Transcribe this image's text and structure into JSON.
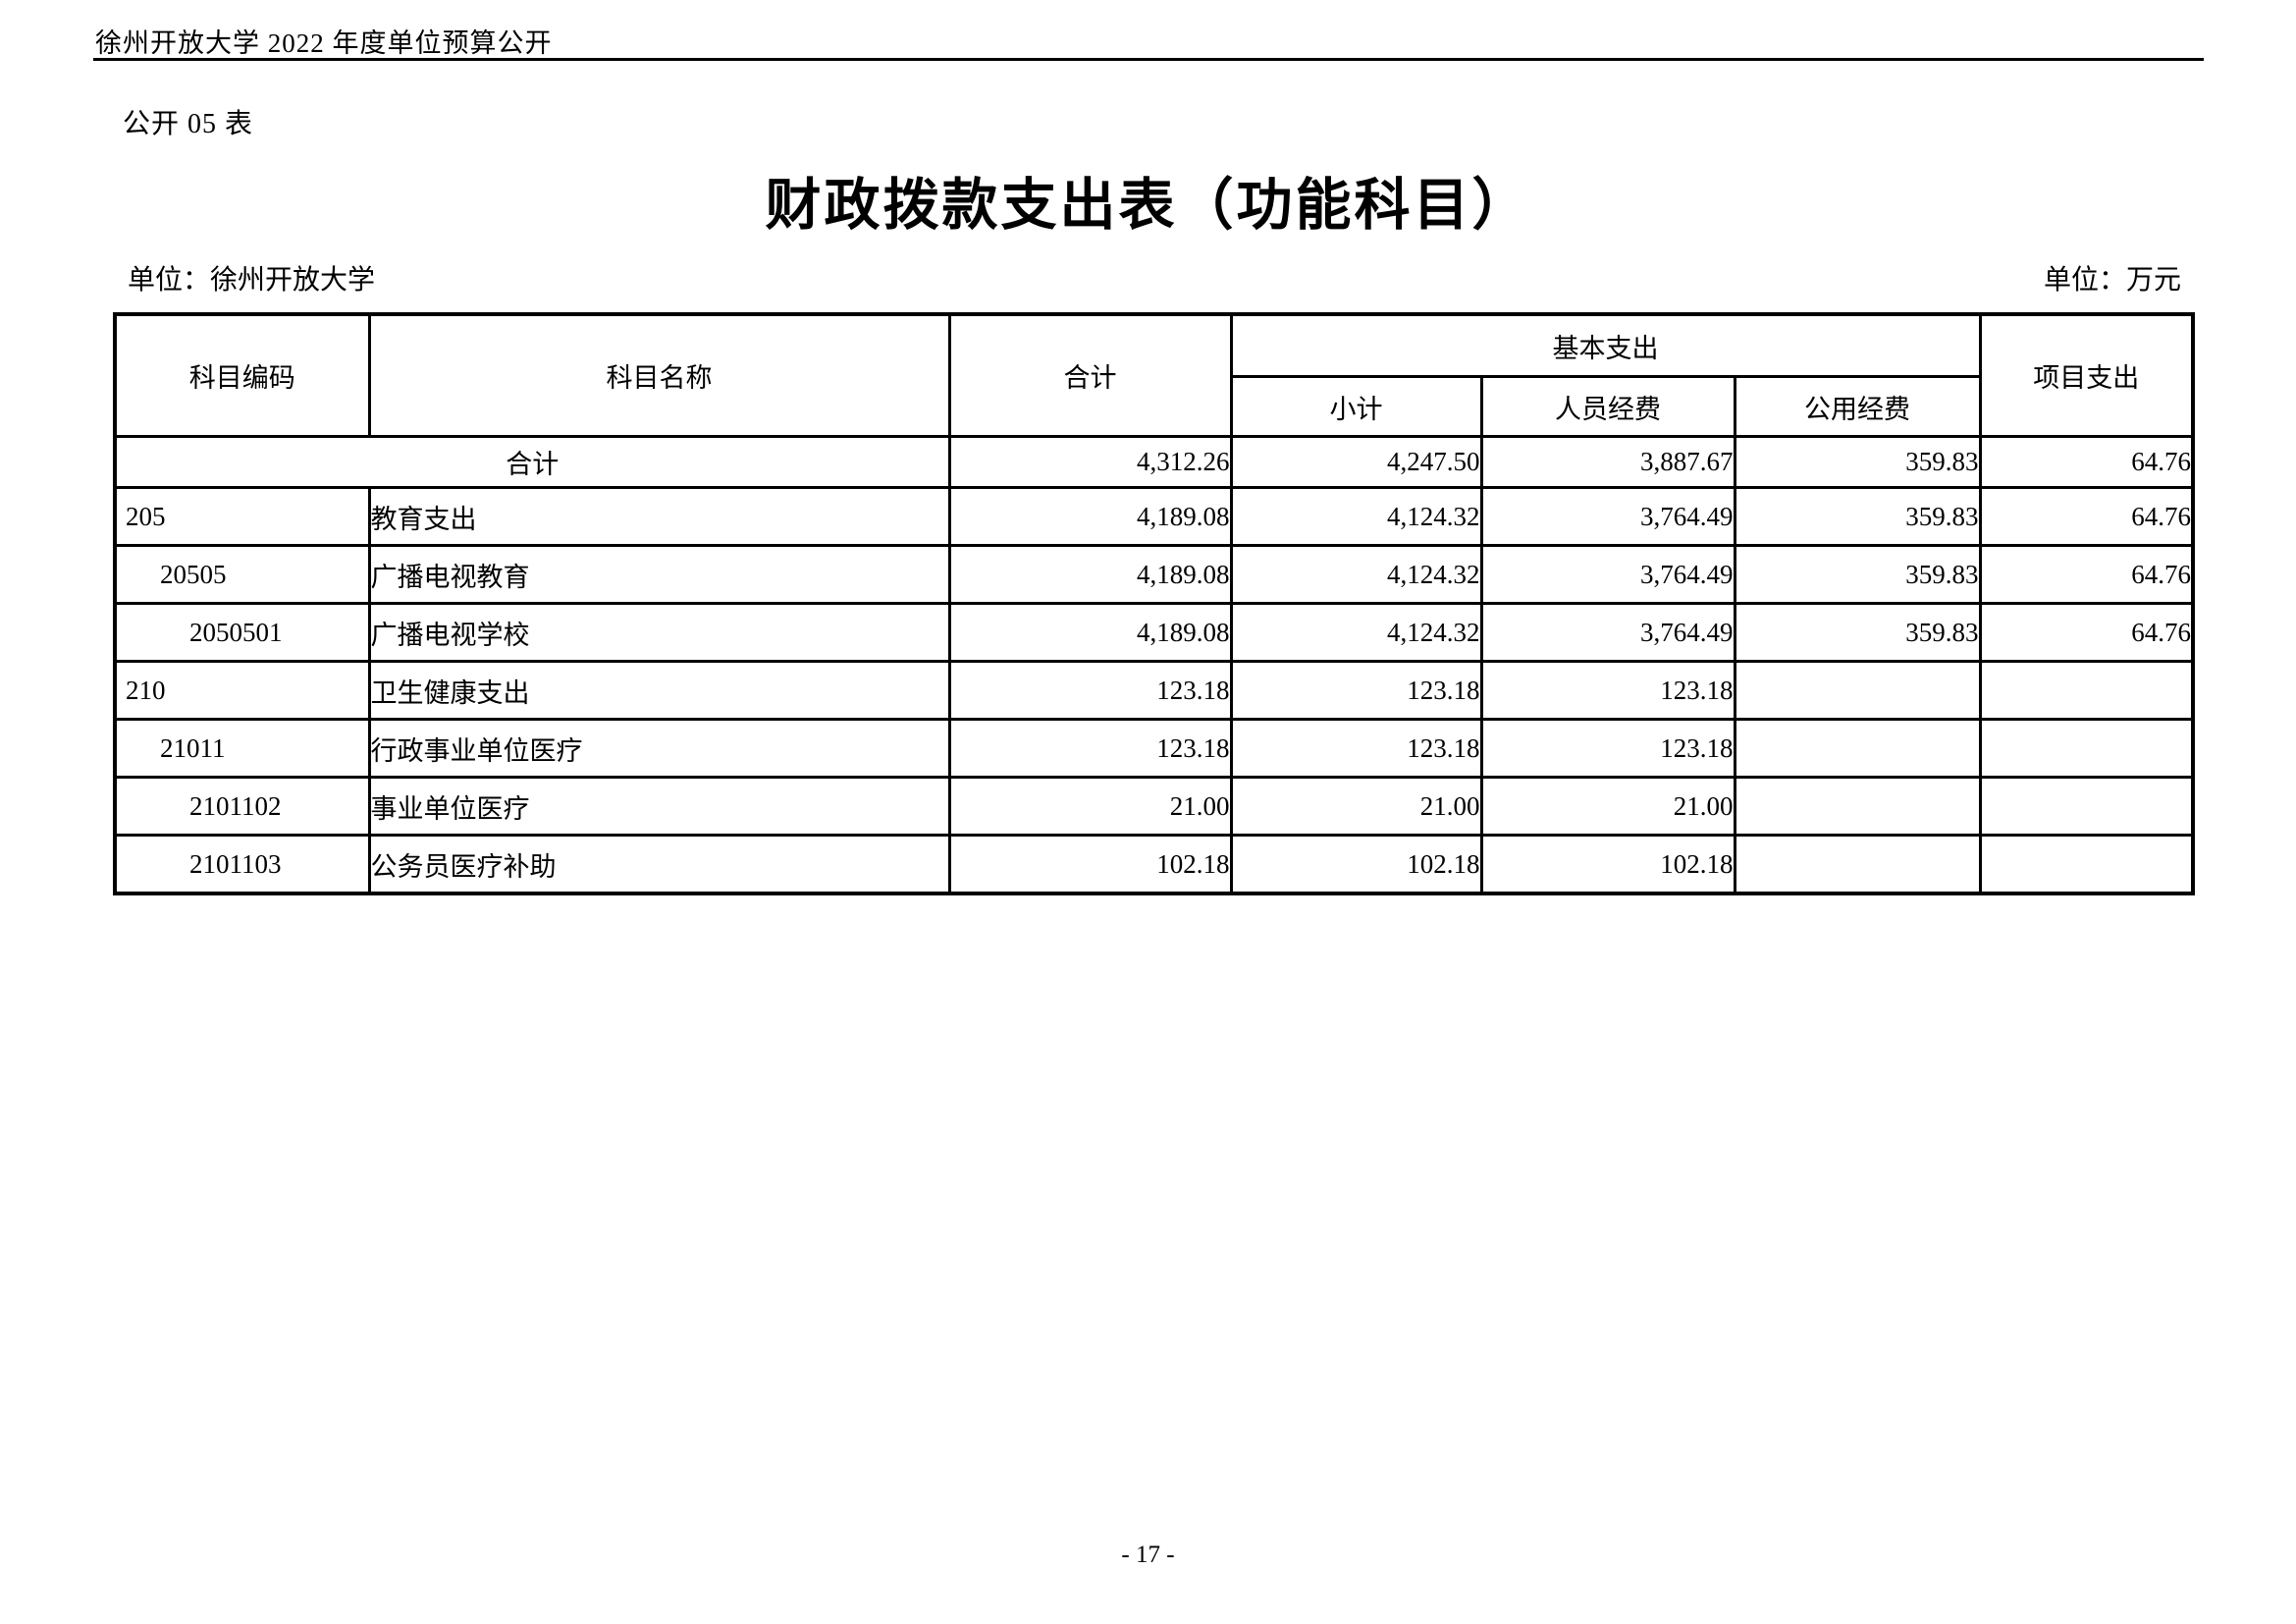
{
  "page": {
    "doc_header": "徐州开放大学 2022 年度单位预算公开",
    "table_label": "公开 05 表",
    "title": "财政拨款支出表（功能科目）",
    "unit_left": "单位：徐州开放大学",
    "unit_right": "单位：万元",
    "page_number": "- 17 -"
  },
  "table": {
    "headers": {
      "code": "科目编码",
      "name": "科目名称",
      "total": "合计",
      "basic_group": "基本支出",
      "basic_subtotal": "小计",
      "personnel": "人员经费",
      "public": "公用经费",
      "project": "项目支出"
    },
    "rows": [
      {
        "merged": true,
        "code": "",
        "name": "合计",
        "level": 0,
        "total": "4,312.26",
        "subtotal": "4,247.50",
        "personnel": "3,887.67",
        "public": "359.83",
        "project": "64.76"
      },
      {
        "merged": false,
        "code": "205",
        "name": "教育支出",
        "level": 1,
        "total": "4,189.08",
        "subtotal": "4,124.32",
        "personnel": "3,764.49",
        "public": "359.83",
        "project": "64.76"
      },
      {
        "merged": false,
        "code": "20505",
        "name": "广播电视教育",
        "level": 2,
        "total": "4,189.08",
        "subtotal": "4,124.32",
        "personnel": "3,764.49",
        "public": "359.83",
        "project": "64.76"
      },
      {
        "merged": false,
        "code": "2050501",
        "name": "广播电视学校",
        "level": 3,
        "total": "4,189.08",
        "subtotal": "4,124.32",
        "personnel": "3,764.49",
        "public": "359.83",
        "project": "64.76"
      },
      {
        "merged": false,
        "code": "210",
        "name": "卫生健康支出",
        "level": 1,
        "total": "123.18",
        "subtotal": "123.18",
        "personnel": "123.18",
        "public": "",
        "project": ""
      },
      {
        "merged": false,
        "code": "21011",
        "name": "行政事业单位医疗",
        "level": 2,
        "total": "123.18",
        "subtotal": "123.18",
        "personnel": "123.18",
        "public": "",
        "project": ""
      },
      {
        "merged": false,
        "code": "2101102",
        "name": "事业单位医疗",
        "level": 3,
        "total": "21.00",
        "subtotal": "21.00",
        "personnel": "21.00",
        "public": "",
        "project": ""
      },
      {
        "merged": false,
        "code": "2101103",
        "name": "公务员医疗补助",
        "level": 3,
        "total": "102.18",
        "subtotal": "102.18",
        "personnel": "102.18",
        "public": "",
        "project": ""
      }
    ]
  }
}
